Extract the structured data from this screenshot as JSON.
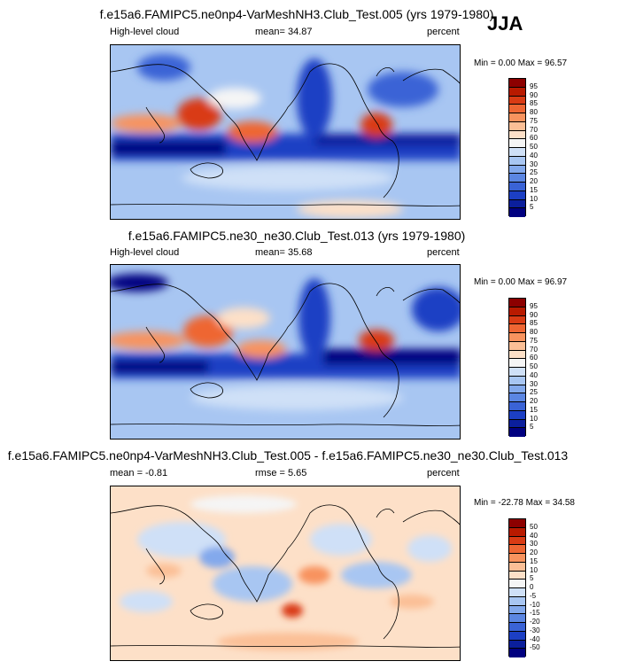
{
  "season": "JJA",
  "panels": [
    {
      "title": "f.e15a6.FAMIPC5.ne0np4-VarMeshNH3.Club_Test.005 (yrs 1979-1980)",
      "left_label": "High-level cloud",
      "mean_label": "mean=  34.87",
      "units": "percent",
      "minmax": "Min =  0.00 Max =  96.57",
      "colorbar": {
        "labels": [
          "95",
          "90",
          "85",
          "80",
          "75",
          "70",
          "60",
          "50",
          "40",
          "30",
          "25",
          "20",
          "15",
          "10",
          "5"
        ],
        "colors": [
          "#8c0000",
          "#b81a00",
          "#d93b14",
          "#ee6633",
          "#f8935e",
          "#fbbf96",
          "#fde0c8",
          "#f5f5f5",
          "#cfe0f7",
          "#a8c6f2",
          "#83a9ec",
          "#5b86e2",
          "#3a63d6",
          "#1c3fc4",
          "#0b1f9c",
          "#000080"
        ]
      }
    },
    {
      "title": "f.e15a6.FAMIPC5.ne30_ne30.Club_Test.013 (yrs 1979-1980)",
      "left_label": "High-level cloud",
      "mean_label": "mean=  35.68",
      "units": "percent",
      "minmax": "Min =  0.00 Max =  96.97",
      "colorbar": {
        "labels": [
          "95",
          "90",
          "85",
          "80",
          "75",
          "70",
          "60",
          "50",
          "40",
          "30",
          "25",
          "20",
          "15",
          "10",
          "5"
        ],
        "colors": [
          "#8c0000",
          "#b81a00",
          "#d93b14",
          "#ee6633",
          "#f8935e",
          "#fbbf96",
          "#fde0c8",
          "#f5f5f5",
          "#cfe0f7",
          "#a8c6f2",
          "#83a9ec",
          "#5b86e2",
          "#3a63d6",
          "#1c3fc4",
          "#0b1f9c",
          "#000080"
        ]
      }
    },
    {
      "title": "f.e15a6.FAMIPC5.ne0np4-VarMeshNH3.Club_Test.005 - f.e15a6.FAMIPC5.ne30_ne30.Club_Test.013",
      "left_label": "mean = -0.81",
      "mean_label": "rmse =  5.65",
      "units": "percent",
      "minmax": "Min = -22.78 Max =  34.58",
      "colorbar": {
        "labels": [
          "50",
          "40",
          "30",
          "20",
          "15",
          "10",
          "5",
          "0",
          "-5",
          "-10",
          "-15",
          "-20",
          "-30",
          "-40",
          "-50"
        ],
        "colors": [
          "#8c0000",
          "#b81a00",
          "#d93b14",
          "#ee6633",
          "#f8935e",
          "#fbbf96",
          "#fde0c8",
          "#f5f5f5",
          "#cfe0f7",
          "#a8c6f2",
          "#83a9ec",
          "#5b86e2",
          "#3a63d6",
          "#1c3fc4",
          "#0b1f9c",
          "#000080"
        ]
      }
    }
  ]
}
